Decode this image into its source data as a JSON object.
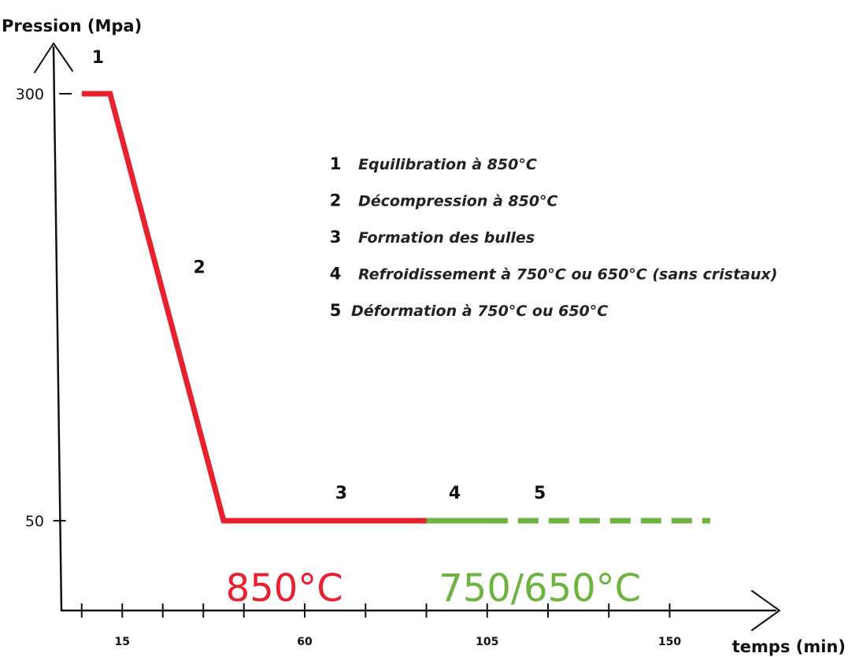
{
  "colors": {
    "hot": "#e8212f",
    "cool": "#6db33f",
    "axis": "#111111"
  },
  "chart_data": {
    "type": "line",
    "xlabel": "temps (min)",
    "ylabel": "Pression (Mpa)",
    "x_ticks": [
      5,
      15,
      25,
      35,
      45,
      60,
      75,
      90,
      105,
      120,
      135,
      150
    ],
    "x_tick_labels": [
      {
        "x": 15,
        "label": "15"
      },
      {
        "x": 60,
        "label": "60"
      },
      {
        "x": 105,
        "label": "105"
      },
      {
        "x": 150,
        "label": "150"
      }
    ],
    "y_tick_labels": [
      {
        "y": 300,
        "label": "300"
      },
      {
        "y": 50,
        "label": "50"
      }
    ],
    "series": [
      {
        "color": "#e8212f",
        "style": "solid",
        "points": [
          [
            5,
            300
          ],
          [
            12,
            300
          ],
          [
            40,
            50
          ],
          [
            90,
            50
          ]
        ]
      },
      {
        "color": "#6db33f",
        "style": "solid",
        "points": [
          [
            90,
            50
          ],
          [
            105,
            50
          ]
        ]
      },
      {
        "color": "#6db33f",
        "style": "dashed",
        "points": [
          [
            105,
            50
          ],
          [
            160,
            50
          ]
        ]
      }
    ],
    "phase_markers": [
      {
        "label": "1",
        "x": 9,
        "y": 318
      },
      {
        "label": "2",
        "x": 34,
        "y": 195
      },
      {
        "label": "3",
        "x": 69,
        "y": 63
      },
      {
        "label": "4",
        "x": 97,
        "y": 63
      },
      {
        "label": "5",
        "x": 118,
        "y": 63
      }
    ],
    "temperature_labels": [
      {
        "text": "850°C",
        "x": 55,
        "y": 3,
        "color": "#e8212f"
      },
      {
        "text": "750/650°C",
        "x": 118,
        "y": 3,
        "color": "#6db33f"
      }
    ],
    "legend": [
      {
        "num": "1",
        "text": "Equilibration à 850°C"
      },
      {
        "num": "2",
        "text": "Décompression à 850°C"
      },
      {
        "num": "3",
        "text": "Formation des bulles"
      },
      {
        "num": "4",
        "text": "Refroidissement à 750°C ou 650°C (sans cristaux)"
      },
      {
        "num": "5",
        "text": "Déformation à 750°C ou 650°C"
      }
    ],
    "legend_placement": "top-right"
  }
}
